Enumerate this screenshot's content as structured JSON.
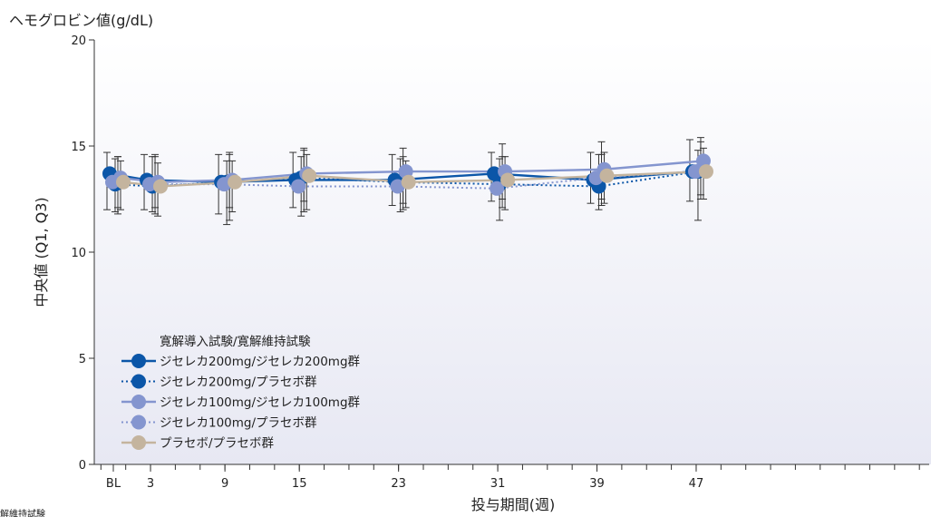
{
  "chart_data": {
    "type": "line",
    "title": "",
    "ylabel_top": "ヘモグロビン値(g/dL)",
    "ylabel_side": "中央値 (Q1, Q3)",
    "xlabel": "投与期間(週)",
    "x_ticks": [
      "BL",
      "3",
      "9",
      "15",
      "23",
      "31",
      "39",
      "47"
    ],
    "x_positions": [
      0,
      3,
      9,
      15,
      23,
      31,
      39,
      47
    ],
    "ylim": [
      0,
      20
    ],
    "y_ticks": [
      0,
      5,
      10,
      15,
      20
    ],
    "grid": false,
    "legend_title": "寛解導入試験/寛解維持試験",
    "legend_position": "lower-left",
    "footnote": "解維持試験",
    "series": [
      {
        "name": "ジセレカ200mg/ジセレカ200mg群",
        "color": "#0B56A8",
        "dash": "solid",
        "x": [
          0,
          3,
          9,
          15,
          23,
          31,
          39,
          47
        ],
        "values": [
          13.7,
          13.4,
          13.3,
          13.4,
          13.4,
          13.7,
          13.4,
          13.8
        ],
        "q1": [
          12.0,
          12.0,
          11.8,
          12.1,
          12.2,
          12.4,
          12.3,
          12.4
        ],
        "q3": [
          14.7,
          14.6,
          14.6,
          14.7,
          14.6,
          14.7,
          14.7,
          15.3
        ]
      },
      {
        "name": "ジセレカ200mg/プラセボ群",
        "color": "#0B56A8",
        "dash": "dotted",
        "x": [
          0,
          3,
          9,
          15,
          23,
          31,
          39,
          47
        ],
        "values": [
          13.2,
          13.1,
          13.3,
          13.5,
          13.3,
          13.2,
          13.1,
          13.8
        ],
        "q1": [
          11.8,
          11.8,
          11.5,
          11.9,
          12.0,
          12.1,
          12.5,
          12.5
        ],
        "q3": [
          14.5,
          14.6,
          14.6,
          14.8,
          14.5,
          14.5,
          14.6,
          15.2
        ]
      },
      {
        "name": "ジセレカ100mg/ジセレカ100mg群",
        "color": "#8495CF",
        "dash": "solid",
        "x": [
          0,
          3,
          9,
          15,
          23,
          31,
          39,
          47
        ],
        "values": [
          13.5,
          13.3,
          13.4,
          13.7,
          13.8,
          13.8,
          13.9,
          14.3
        ],
        "q1": [
          12.1,
          12.1,
          12.1,
          12.4,
          12.3,
          12.5,
          12.2,
          12.7
        ],
        "q3": [
          14.5,
          14.5,
          14.7,
          14.9,
          14.9,
          15.1,
          15.2,
          15.4
        ]
      },
      {
        "name": "ジセレカ100mg/プラセボ群",
        "color": "#8495CF",
        "dash": "dotted",
        "x": [
          0,
          3,
          9,
          15,
          23,
          31,
          39,
          47
        ],
        "values": [
          13.3,
          13.2,
          13.2,
          13.1,
          13.1,
          13.0,
          13.5,
          13.8
        ],
        "q1": [
          11.9,
          11.9,
          11.3,
          11.7,
          11.9,
          11.5,
          12.0,
          11.5
        ],
        "q3": [
          14.4,
          14.5,
          14.3,
          14.5,
          14.4,
          14.4,
          14.6,
          14.8
        ]
      },
      {
        "name": "プラセボ/プラセボ群",
        "color": "#C4B49E",
        "dash": "solid",
        "x": [
          0,
          3,
          9,
          15,
          23,
          31,
          39,
          47
        ],
        "values": [
          13.3,
          13.1,
          13.3,
          13.6,
          13.3,
          13.4,
          13.6,
          13.8
        ],
        "q1": [
          12.0,
          11.7,
          11.9,
          12.0,
          12.1,
          12.0,
          12.3,
          12.5
        ],
        "q3": [
          14.3,
          14.2,
          14.3,
          14.6,
          14.3,
          14.5,
          14.7,
          14.9
        ]
      }
    ]
  }
}
